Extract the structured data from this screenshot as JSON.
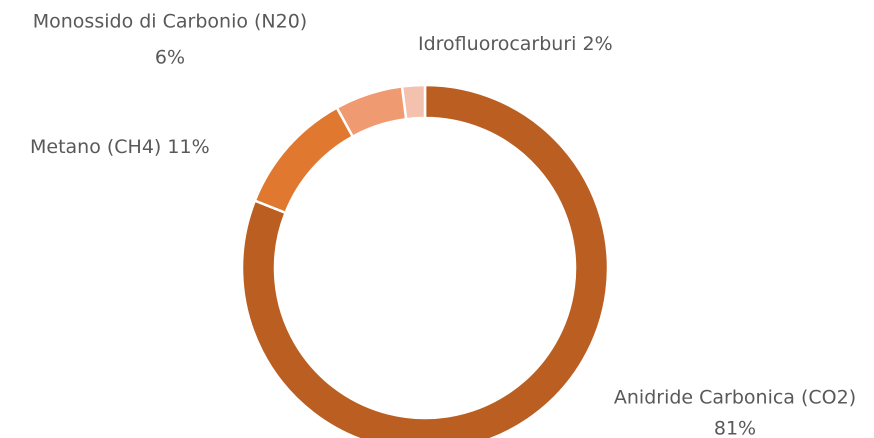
{
  "chart_data": {
    "type": "donut",
    "categories": [
      "Anidride Carbonica (CO2)",
      "Metano (CH4)",
      "Monossido di Carbonio (N20)",
      "Idrofluorocarburi"
    ],
    "values": [
      81,
      11,
      6,
      2
    ],
    "value_labels": [
      "81%",
      "11%",
      "6%",
      "2%"
    ],
    "colors": [
      "#BA5F21",
      "#E0782F",
      "#F09A72",
      "#F4C1AE"
    ]
  }
}
